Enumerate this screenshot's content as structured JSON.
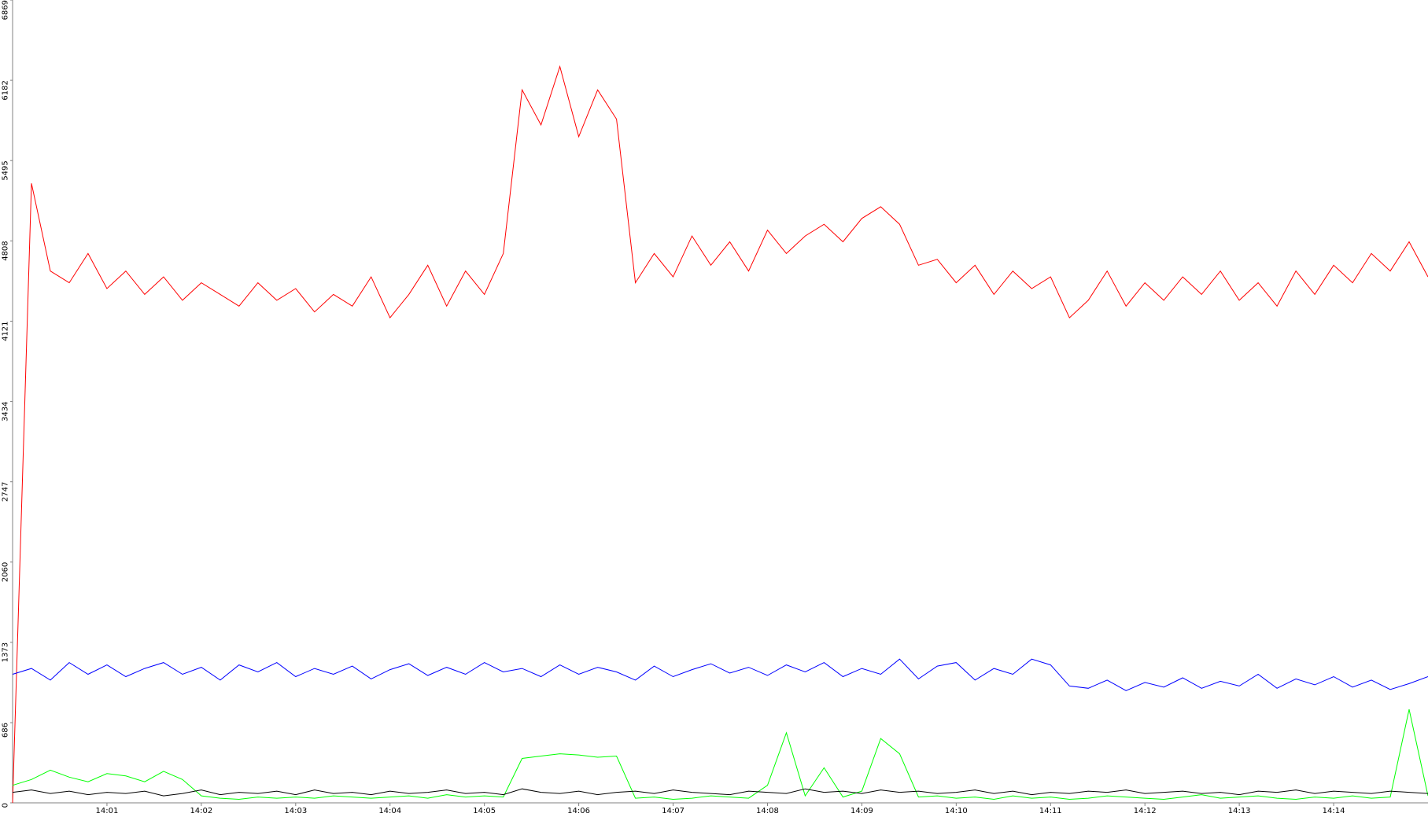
{
  "chart_data": {
    "type": "line",
    "x": [
      0,
      0.2,
      0.4,
      0.6,
      0.8,
      1.0,
      1.2,
      1.4,
      1.6,
      1.8,
      2.0,
      2.2,
      2.4,
      2.6,
      2.8,
      3.0,
      3.2,
      3.4,
      3.6,
      3.8,
      4.0,
      4.2,
      4.4,
      4.6,
      4.8,
      5.0,
      5.2,
      5.4,
      5.6,
      5.8,
      6.0,
      6.2,
      6.4,
      6.6,
      6.8,
      7.0,
      7.2,
      7.4,
      7.6,
      7.8,
      8.0,
      8.2,
      8.4,
      8.6,
      8.8,
      9.0,
      9.2,
      9.4,
      9.6,
      9.8,
      10.0,
      10.2,
      10.4,
      10.6,
      10.8,
      11.0,
      11.2,
      11.4,
      11.6,
      11.8,
      12.0,
      12.2,
      12.4,
      12.6,
      12.8,
      13.0,
      13.2,
      13.4,
      13.6,
      13.8,
      14.0,
      14.2,
      14.4,
      14.6,
      14.8,
      15.0
    ],
    "series": [
      {
        "color": "#ff0000",
        "values": [
          0,
          5300,
          4550,
          4450,
          4700,
          4400,
          4550,
          4350,
          4500,
          4300,
          4450,
          4350,
          4250,
          4450,
          4300,
          4400,
          4200,
          4350,
          4250,
          4500,
          4150,
          4350,
          4600,
          4250,
          4550,
          4350,
          4700,
          6100,
          5800,
          6300,
          5700,
          6100,
          5850,
          4450,
          4700,
          4500,
          4850,
          4600,
          4800,
          4550,
          4900,
          4700,
          4850,
          4950,
          4800,
          5000,
          5100,
          4950,
          4600,
          4650,
          4450,
          4600,
          4350,
          4550,
          4400,
          4500,
          4150,
          4300,
          4550,
          4250,
          4450,
          4300,
          4500,
          4350,
          4550,
          4300,
          4450,
          4250,
          4550,
          4350,
          4600,
          4450,
          4700,
          4550,
          4800,
          4500
        ]
      },
      {
        "color": "#0000ff",
        "values": [
          1100,
          1150,
          1050,
          1200,
          1100,
          1180,
          1080,
          1150,
          1200,
          1100,
          1160,
          1050,
          1180,
          1120,
          1200,
          1080,
          1150,
          1100,
          1170,
          1060,
          1140,
          1190,
          1090,
          1160,
          1100,
          1200,
          1120,
          1150,
          1080,
          1180,
          1100,
          1160,
          1120,
          1050,
          1170,
          1080,
          1140,
          1190,
          1110,
          1160,
          1090,
          1180,
          1120,
          1200,
          1080,
          1150,
          1100,
          1230,
          1060,
          1170,
          1200,
          1050,
          1150,
          1100,
          1230,
          1180,
          1000,
          980,
          1050,
          960,
          1030,
          990,
          1070,
          980,
          1040,
          1000,
          1100,
          980,
          1060,
          1010,
          1080,
          990,
          1050,
          970,
          1020,
          1080
        ]
      },
      {
        "color": "#00ff00",
        "values": [
          150,
          200,
          280,
          220,
          180,
          250,
          230,
          180,
          270,
          200,
          60,
          40,
          30,
          50,
          40,
          50,
          40,
          60,
          50,
          40,
          50,
          60,
          40,
          70,
          50,
          60,
          50,
          380,
          400,
          420,
          410,
          390,
          400,
          40,
          50,
          30,
          40,
          60,
          50,
          40,
          150,
          600,
          60,
          300,
          50,
          100,
          550,
          420,
          50,
          60,
          40,
          50,
          30,
          60,
          40,
          50,
          30,
          40,
          60,
          50,
          40,
          30,
          50,
          70,
          40,
          50,
          60,
          40,
          30,
          50,
          40,
          60,
          40,
          50,
          800,
          60
        ]
      },
      {
        "color": "#000000",
        "values": [
          90,
          110,
          80,
          100,
          70,
          90,
          80,
          100,
          60,
          80,
          110,
          70,
          90,
          80,
          100,
          70,
          110,
          80,
          90,
          70,
          100,
          80,
          90,
          110,
          80,
          90,
          70,
          120,
          90,
          80,
          100,
          70,
          90,
          100,
          80,
          110,
          90,
          80,
          70,
          100,
          90,
          80,
          120,
          90,
          100,
          80,
          110,
          90,
          100,
          80,
          90,
          110,
          80,
          100,
          70,
          90,
          80,
          100,
          90,
          110,
          80,
          90,
          100,
          80,
          90,
          70,
          100,
          90,
          110,
          80,
          100,
          90,
          80,
          100,
          90,
          80
        ]
      }
    ],
    "xlim": [
      0,
      15
    ],
    "xticks": [
      {
        "value": 1,
        "label": "14:01"
      },
      {
        "value": 2,
        "label": "14:02"
      },
      {
        "value": 3,
        "label": "14:03"
      },
      {
        "value": 4,
        "label": "14:04"
      },
      {
        "value": 5,
        "label": "14:05"
      },
      {
        "value": 6,
        "label": "14:06"
      },
      {
        "value": 7,
        "label": "14:07"
      },
      {
        "value": 8,
        "label": "14:08"
      },
      {
        "value": 9,
        "label": "14:09"
      },
      {
        "value": 10,
        "label": "14:10"
      },
      {
        "value": 11,
        "label": "14:11"
      },
      {
        "value": 12,
        "label": "14:12"
      },
      {
        "value": 13,
        "label": "14:13"
      },
      {
        "value": 14,
        "label": "14:14"
      }
    ],
    "ylim": [
      0,
      6869
    ],
    "yticks": [
      0,
      686,
      1373,
      2060,
      2747,
      3434,
      4121,
      4808,
      5495,
      6182,
      6869
    ],
    "grid": false
  }
}
